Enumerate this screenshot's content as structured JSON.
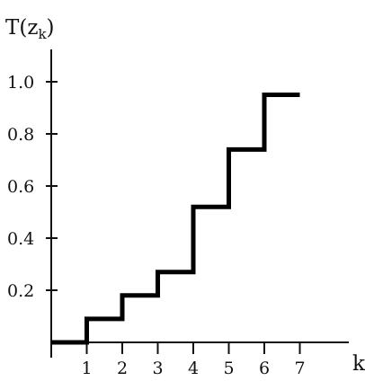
{
  "chart_data": {
    "type": "line",
    "step": true,
    "title": "",
    "ylabel": {
      "base": "T(z",
      "subscript": "k",
      "close": ")"
    },
    "xlabel": "k",
    "x_ticks": [
      "1",
      "2",
      "3",
      "4",
      "5",
      "6",
      "7"
    ],
    "y_ticks": [
      "0.2",
      "0.4",
      "0.6",
      "0.8",
      "1.0"
    ],
    "y_tick_values": [
      0.2,
      0.4,
      0.6,
      0.8,
      1.0
    ],
    "xlim": [
      0,
      7.8
    ],
    "ylim": [
      0,
      1.1
    ],
    "series": [
      {
        "x": [
          0,
          1,
          2,
          3,
          4,
          5,
          6,
          7
        ],
        "y": [
          0.0,
          0.09,
          0.18,
          0.27,
          0.52,
          0.74,
          0.95,
          0.95
        ]
      }
    ],
    "grid": false,
    "legend": "none"
  }
}
